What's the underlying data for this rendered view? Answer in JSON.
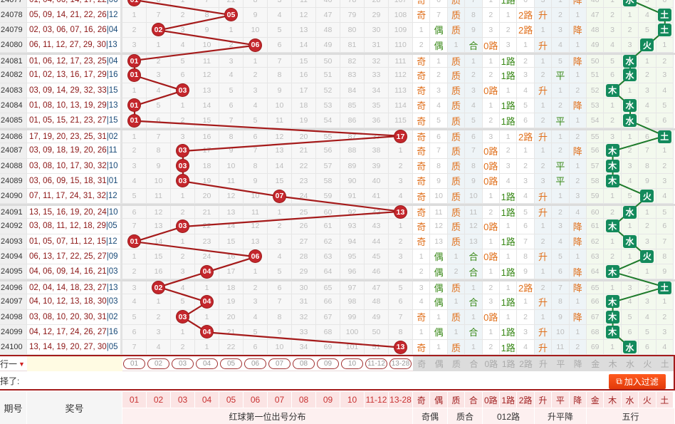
{
  "rows": [
    {
      "p": "24077",
      "n": "01, 04, 06, 14, 17, 22",
      "b": "06",
      "d": [
        "01",
        6,
        1,
        7,
        21,
        8,
        3,
        11,
        46,
        78,
        28,
        107
      ],
      "r": [
        "奇",
        6,
        "质",
        7,
        1,
        "1路",
        6,
        3,
        1,
        "降",
        46,
        1,
        "水",
        3,
        6
      ]
    },
    {
      "p": "24078",
      "n": "05, 09, 14, 21, 22, 26",
      "b": "12",
      "d": [
        1,
        7,
        2,
        8,
        "05",
        9,
        4,
        12,
        47,
        79,
        29,
        108
      ],
      "r": [
        "奇",
        7,
        "质",
        8,
        2,
        1,
        "2路",
        "升",
        2,
        1,
        47,
        2,
        1,
        4,
        "土"
      ]
    },
    {
      "p": "24079",
      "n": "02, 03, 06, 07, 16, 26",
      "b": "04",
      "d": [
        2,
        "02",
        3,
        9,
        1,
        10,
        5,
        13,
        48,
        80,
        30,
        109
      ],
      "r": [
        1,
        "偶",
        "质",
        9,
        3,
        2,
        "2路",
        1,
        3,
        "降",
        48,
        3,
        2,
        5,
        "土"
      ]
    },
    {
      "p": "24080",
      "n": "06, 11, 12, 27, 29, 30",
      "b": "13",
      "d": [
        3,
        1,
        4,
        10,
        2,
        "06",
        6,
        14,
        49,
        81,
        31,
        110
      ],
      "r": [
        2,
        "偶",
        1,
        "合",
        "0路",
        3,
        1,
        "升",
        4,
        1,
        49,
        4,
        3,
        "火",
        1
      ]
    },
    {
      "p": "24081",
      "n": "01, 06, 12, 17, 23, 25",
      "b": "04",
      "d": [
        "01",
        2,
        5,
        11,
        3,
        1,
        7,
        15,
        50,
        82,
        32,
        111
      ],
      "r": [
        "奇",
        1,
        "质",
        1,
        1,
        "1路",
        2,
        1,
        5,
        "降",
        50,
        5,
        "水",
        1,
        2
      ]
    },
    {
      "p": "24082",
      "n": "01, 02, 13, 16, 17, 29",
      "b": "16",
      "d": [
        "01",
        3,
        6,
        12,
        4,
        2,
        8,
        16,
        51,
        83,
        33,
        112
      ],
      "r": [
        "奇",
        2,
        "质",
        2,
        2,
        "1路",
        3,
        2,
        "平",
        1,
        51,
        6,
        "水",
        2,
        3
      ]
    },
    {
      "p": "24083",
      "n": "03, 09, 14, 29, 32, 33",
      "b": "15",
      "d": [
        1,
        4,
        "03",
        13,
        5,
        3,
        9,
        17,
        52,
        84,
        34,
        113
      ],
      "r": [
        "奇",
        3,
        "质",
        3,
        "0路",
        1,
        4,
        "升",
        1,
        2,
        52,
        "木",
        1,
        3,
        4
      ]
    },
    {
      "p": "24084",
      "n": "01, 08, 10, 13, 19, 29",
      "b": "13",
      "d": [
        "01",
        5,
        1,
        14,
        6,
        4,
        10,
        18,
        53,
        85,
        35,
        114
      ],
      "r": [
        "奇",
        4,
        "质",
        4,
        1,
        "1路",
        5,
        1,
        2,
        "降",
        53,
        1,
        "水",
        4,
        5
      ]
    },
    {
      "p": "24085",
      "n": "01, 05, 15, 21, 23, 27",
      "b": "15",
      "d": [
        "01",
        6,
        2,
        15,
        7,
        5,
        11,
        19,
        54,
        86,
        36,
        115
      ],
      "r": [
        "奇",
        5,
        "质",
        5,
        2,
        "1路",
        6,
        2,
        "平",
        1,
        54,
        2,
        "水",
        5,
        6
      ]
    },
    {
      "p": "24086",
      "n": "17, 19, 20, 23, 25, 31",
      "b": "02",
      "d": [
        1,
        7,
        3,
        16,
        8,
        6,
        12,
        20,
        55,
        87,
        37,
        "17"
      ],
      "r": [
        "奇",
        6,
        "质",
        6,
        3,
        1,
        "2路",
        "升",
        1,
        2,
        55,
        3,
        1,
        6,
        "土"
      ]
    },
    {
      "p": "24087",
      "n": "03, 09, 18, 19, 20, 26",
      "b": "11",
      "d": [
        2,
        8,
        "03",
        17,
        9,
        7,
        13,
        21,
        56,
        88,
        38,
        1
      ],
      "r": [
        "奇",
        7,
        "质",
        7,
        "0路",
        2,
        1,
        1,
        2,
        "降",
        56,
        "木",
        2,
        7,
        1
      ]
    },
    {
      "p": "24088",
      "n": "03, 08, 10, 17, 30, 32",
      "b": "10",
      "d": [
        3,
        9,
        "03",
        18,
        10,
        8,
        14,
        22,
        57,
        89,
        39,
        2
      ],
      "r": [
        "奇",
        8,
        "质",
        8,
        "0路",
        3,
        2,
        2,
        "平",
        1,
        57,
        "木",
        3,
        8,
        2
      ]
    },
    {
      "p": "24089",
      "n": "03, 06, 09, 15, 18, 31",
      "b": "01",
      "d": [
        4,
        10,
        "03",
        19,
        11,
        9,
        15,
        23,
        58,
        90,
        40,
        3
      ],
      "r": [
        "奇",
        9,
        "质",
        9,
        "0路",
        4,
        3,
        3,
        "平",
        2,
        58,
        "木",
        4,
        9,
        3
      ]
    },
    {
      "p": "24090",
      "n": "07, 11, 17, 24, 31, 32",
      "b": "12",
      "d": [
        5,
        11,
        1,
        20,
        12,
        10,
        "07",
        24,
        59,
        91,
        41,
        4
      ],
      "r": [
        "奇",
        10,
        "质",
        10,
        1,
        "1路",
        4,
        "升",
        1,
        3,
        59,
        1,
        5,
        "火",
        4
      ]
    },
    {
      "p": "24091",
      "n": "13, 15, 16, 19, 20, 24",
      "b": "10",
      "d": [
        6,
        12,
        2,
        21,
        13,
        11,
        1,
        25,
        60,
        92,
        42,
        "13"
      ],
      "r": [
        "奇",
        11,
        "质",
        11,
        2,
        "1路",
        5,
        "升",
        2,
        4,
        60,
        2,
        "水",
        1,
        5
      ]
    },
    {
      "p": "24092",
      "n": "03, 08, 11, 12, 18, 29",
      "b": "05",
      "d": [
        7,
        13,
        "03",
        22,
        14,
        12,
        2,
        26,
        61,
        93,
        43,
        1
      ],
      "r": [
        "奇",
        12,
        "质",
        12,
        "0路",
        1,
        6,
        1,
        3,
        "降",
        61,
        "木",
        1,
        2,
        6
      ]
    },
    {
      "p": "24093",
      "n": "01, 05, 07, 11, 12, 15",
      "b": "12",
      "d": [
        "01",
        14,
        1,
        23,
        15,
        13,
        3,
        27,
        62,
        94,
        44,
        2
      ],
      "r": [
        "奇",
        13,
        "质",
        13,
        1,
        "1路",
        7,
        2,
        4,
        "降",
        62,
        1,
        "水",
        3,
        7
      ]
    },
    {
      "p": "24094",
      "n": "06, 13, 17, 22, 25, 27",
      "b": "09",
      "d": [
        1,
        15,
        2,
        24,
        16,
        "06",
        4,
        28,
        63,
        95,
        45,
        3
      ],
      "r": [
        1,
        "偶",
        1,
        "合",
        "0路",
        1,
        8,
        "升",
        5,
        1,
        63,
        2,
        1,
        "火",
        8
      ]
    },
    {
      "p": "24095",
      "n": "04, 06, 09, 14, 16, 21",
      "b": "03",
      "d": [
        2,
        16,
        3,
        "04",
        17,
        1,
        5,
        29,
        64,
        96,
        46,
        4
      ],
      "r": [
        2,
        "偶",
        2,
        "合",
        1,
        "1路",
        9,
        1,
        6,
        "降",
        64,
        "木",
        2,
        1,
        9
      ]
    },
    {
      "p": "24096",
      "n": "02, 04, 14, 18, 23, 27",
      "b": "13",
      "d": [
        3,
        "02",
        4,
        1,
        18,
        2,
        6,
        30,
        65,
        97,
        47,
        5
      ],
      "r": [
        3,
        "偶",
        "质",
        1,
        2,
        1,
        "2路",
        2,
        7,
        "降",
        65,
        1,
        3,
        2,
        "土"
      ]
    },
    {
      "p": "24097",
      "n": "04, 10, 12, 13, 18, 30",
      "b": "03",
      "d": [
        4,
        1,
        5,
        "04",
        19,
        3,
        7,
        31,
        66,
        98,
        48,
        6
      ],
      "r": [
        4,
        "偶",
        1,
        "合",
        3,
        "1路",
        1,
        "升",
        8,
        1,
        66,
        "木",
        4,
        3,
        1
      ]
    },
    {
      "p": "24098",
      "n": "03, 08, 10, 20, 30, 31",
      "b": "02",
      "d": [
        5,
        2,
        "03",
        1,
        20,
        4,
        8,
        32,
        67,
        99,
        49,
        7
      ],
      "r": [
        "奇",
        1,
        "质",
        1,
        "0路",
        1,
        2,
        1,
        9,
        "降",
        67,
        "木",
        5,
        4,
        2
      ]
    },
    {
      "p": "24099",
      "n": "04, 12, 17, 24, 26, 27",
      "b": "16",
      "d": [
        6,
        3,
        1,
        "04",
        21,
        5,
        9,
        33,
        68,
        100,
        50,
        8
      ],
      "r": [
        1,
        "偶",
        1,
        "合",
        1,
        "1路",
        3,
        "升",
        10,
        1,
        68,
        "木",
        6,
        5,
        3
      ]
    },
    {
      "p": "24100",
      "n": "13, 14, 19, 20, 27, 30",
      "b": "05",
      "d": [
        7,
        4,
        2,
        1,
        22,
        6,
        10,
        34,
        69,
        101,
        51,
        "13"
      ],
      "r": [
        "奇",
        1,
        "质",
        1,
        2,
        "1路",
        4,
        "升",
        11,
        2,
        69,
        1,
        "水",
        6,
        4
      ]
    }
  ],
  "dist_cols": [
    "01",
    "02",
    "03",
    "04",
    "05",
    "06",
    "07",
    "08",
    "09",
    "10",
    "11-12",
    "13-28"
  ],
  "right_cols": [
    "奇",
    "偶",
    "质",
    "合",
    "0路",
    "1路",
    "2路",
    "升",
    "平",
    "降",
    "金",
    "木",
    "水",
    "火",
    "土"
  ],
  "filter": {
    "row_label": "行一",
    "chosen_label": "择了:",
    "add_button": "加入过滤"
  },
  "header": {
    "period": "期号",
    "numbers": "奖号",
    "group_dist": "红球第一位出号分布",
    "group_oe": "奇偶",
    "group_pc": "质合",
    "group_012": "012路",
    "group_upd": "升平降",
    "group_wx": "五行"
  },
  "colors": {
    "ball": "#c4262c",
    "line": "#a51a1a",
    "wuxing": "#138a5c",
    "hit_orange": "#e0701c",
    "hit_green": "#3b8a1a"
  }
}
